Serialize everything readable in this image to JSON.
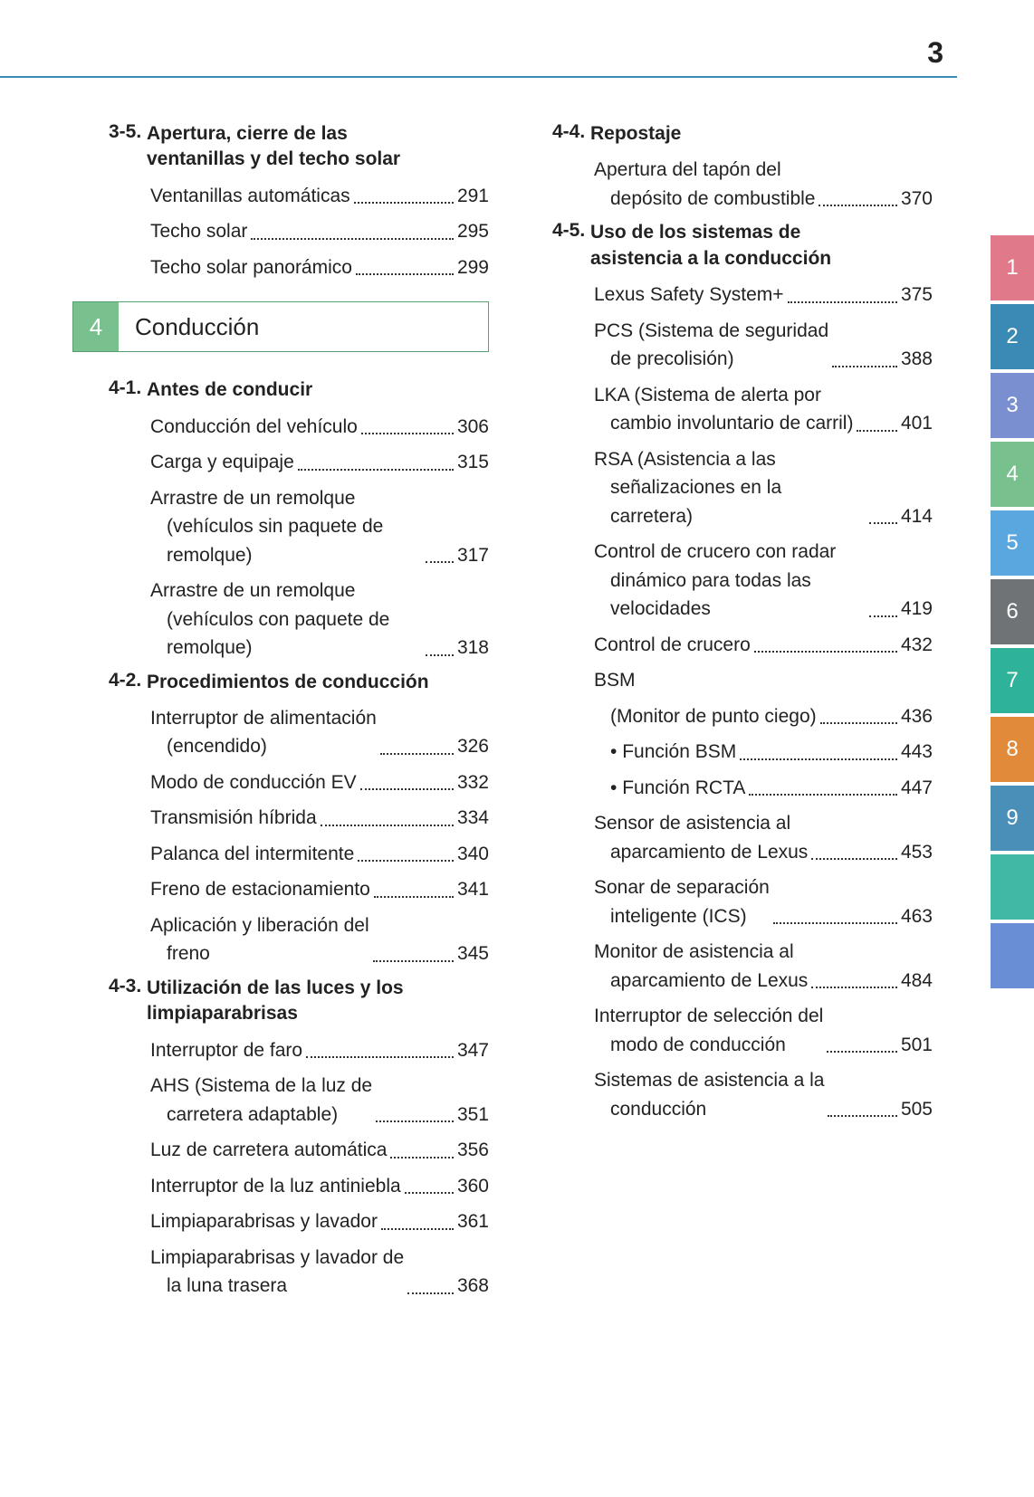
{
  "page_number": "3",
  "top_rule_color": "#3a8ab5",
  "chapter": {
    "number": "4",
    "title": "Conducción",
    "tab_color": "#79c08f"
  },
  "left_column": [
    {
      "kind": "section",
      "num": "3-5.",
      "title": "Apertura, cierre de las ventanillas y del techo solar"
    },
    {
      "kind": "entry",
      "label": "Ventanillas automáticas",
      "page": "291"
    },
    {
      "kind": "entry",
      "label": "Techo solar",
      "page": "295"
    },
    {
      "kind": "entry",
      "label": "Techo solar panorámico",
      "page": "299"
    },
    {
      "kind": "chapter"
    },
    {
      "kind": "section",
      "num": "4-1.",
      "title": "Antes de conducir"
    },
    {
      "kind": "entry",
      "label": "Conducción del vehículo",
      "page": "306"
    },
    {
      "kind": "entry",
      "label": "Carga y equipaje",
      "page": "315"
    },
    {
      "kind": "entry",
      "label": "Arrastre de un remolque",
      "cont": "(vehículos sin paquete de remolque)",
      "page": "317"
    },
    {
      "kind": "entry",
      "label": "Arrastre de un remolque",
      "cont": "(vehículos con paquete de remolque)",
      "page": "318"
    },
    {
      "kind": "section",
      "num": "4-2.",
      "title": "Procedimientos de conducción"
    },
    {
      "kind": "entry",
      "label": "Interruptor de alimentación",
      "cont": "(encendido)",
      "page": "326"
    },
    {
      "kind": "entry",
      "label": "Modo de conducción EV",
      "page": "332"
    },
    {
      "kind": "entry",
      "label": "Transmisión híbrida",
      "page": "334"
    },
    {
      "kind": "entry",
      "label": "Palanca del intermitente",
      "page": "340"
    },
    {
      "kind": "entry",
      "label": "Freno de estacionamiento",
      "page": "341"
    },
    {
      "kind": "entry",
      "label": "Aplicación y liberación del",
      "cont": "freno",
      "page": "345"
    },
    {
      "kind": "section",
      "num": "4-3.",
      "title": "Utilización de las luces y los limpiaparabrisas"
    },
    {
      "kind": "entry",
      "label": "Interruptor de faro",
      "page": "347"
    },
    {
      "kind": "entry",
      "label": "AHS (Sistema de la luz de",
      "cont": "carretera adaptable)",
      "page": "351"
    },
    {
      "kind": "entry",
      "label": "Luz de carretera automática",
      "page": "356"
    },
    {
      "kind": "entry",
      "label": "Interruptor de la luz antiniebla",
      "page": "360"
    },
    {
      "kind": "entry",
      "label": "Limpiaparabrisas y lavador",
      "page": "361"
    },
    {
      "kind": "entry",
      "label": "Limpiaparabrisas y lavador de",
      "cont": "la luna trasera",
      "page": "368"
    }
  ],
  "right_column": [
    {
      "kind": "section",
      "num": "4-4.",
      "title": "Repostaje"
    },
    {
      "kind": "entry",
      "label": "Apertura del tapón del",
      "cont": "depósito de combustible",
      "page": "370"
    },
    {
      "kind": "section",
      "num": "4-5.",
      "title": "Uso de los sistemas de asistencia a la conducción"
    },
    {
      "kind": "entry",
      "label": "Lexus Safety System+",
      "page": "375"
    },
    {
      "kind": "entry",
      "label": "PCS (Sistema de seguridad",
      "cont": "de precolisión)",
      "page": "388"
    },
    {
      "kind": "entry",
      "label": "LKA (Sistema de alerta por",
      "cont": "cambio involuntario de carril)",
      "page": "401"
    },
    {
      "kind": "entry",
      "label": "RSA (Asistencia a las",
      "cont": "señalizaciones en la carretera)",
      "page": "414"
    },
    {
      "kind": "entry",
      "label": "Control de crucero con radar",
      "cont": "dinámico para todas las velocidades",
      "page": "419"
    },
    {
      "kind": "entry",
      "label": "Control de crucero",
      "page": "432"
    },
    {
      "kind": "text",
      "label": "BSM"
    },
    {
      "kind": "entry",
      "sub": true,
      "label": "(Monitor de punto ciego)",
      "page": "436"
    },
    {
      "kind": "entry",
      "sub": true,
      "bullet": true,
      "label": "Función BSM",
      "page": "443"
    },
    {
      "kind": "entry",
      "sub": true,
      "bullet": true,
      "label": "Función RCTA",
      "page": "447"
    },
    {
      "kind": "entry",
      "label": "Sensor de asistencia al",
      "cont": "aparcamiento de Lexus",
      "page": "453"
    },
    {
      "kind": "entry",
      "label": "Sonar de separación",
      "cont": "inteligente (ICS)",
      "page": "463"
    },
    {
      "kind": "entry",
      "label": "Monitor de asistencia al",
      "cont": "aparcamiento de Lexus",
      "page": "484"
    },
    {
      "kind": "entry",
      "label": "Interruptor de selección del",
      "cont": "modo de conducción",
      "page": "501"
    },
    {
      "kind": "entry",
      "label": "Sistemas de asistencia a la",
      "cont": "conducción",
      "page": "505"
    }
  ],
  "side_tabs": [
    {
      "label": "1",
      "color": "#e07a8b"
    },
    {
      "label": "2",
      "color": "#3a8ab5"
    },
    {
      "label": "3",
      "color": "#7a8fd0"
    },
    {
      "label": "4",
      "color": "#79c08f"
    },
    {
      "label": "5",
      "color": "#5aa7e0"
    },
    {
      "label": "6",
      "color": "#6f7376"
    },
    {
      "label": "7",
      "color": "#2fb29a"
    },
    {
      "label": "8",
      "color": "#e08a3a"
    },
    {
      "label": "9",
      "color": "#4a8fb8"
    },
    {
      "label": "",
      "color": "#3fb9a6"
    },
    {
      "label": "",
      "color": "#6a8ed6"
    }
  ]
}
